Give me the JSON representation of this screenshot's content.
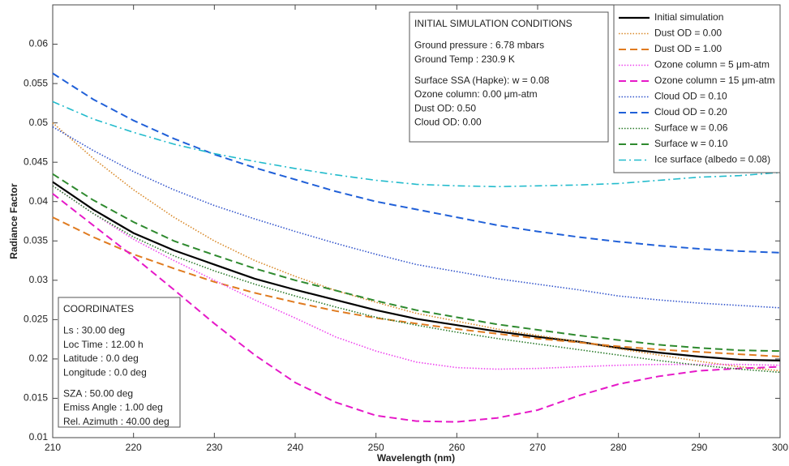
{
  "chart_data": {
    "type": "line",
    "x_label": "Wavelength (nm)",
    "y_label": "Radiance Factor",
    "x": [
      210,
      215,
      220,
      225,
      230,
      235,
      240,
      245,
      250,
      255,
      260,
      265,
      270,
      275,
      280,
      285,
      290,
      295,
      300
    ],
    "xlim": [
      210,
      300
    ],
    "xticks": [
      210,
      220,
      230,
      240,
      250,
      260,
      270,
      280,
      290,
      300
    ],
    "ylim": [
      0.01,
      0.065
    ],
    "yticks": [
      0.01,
      0.015,
      0.02,
      0.025,
      0.03,
      0.035,
      0.04,
      0.045,
      0.05,
      0.055,
      0.06
    ],
    "grid": false,
    "legend": "upper right",
    "series": [
      {
        "name": "Initial simulation",
        "color": "#000000",
        "style": "solid",
        "values": [
          0.0425,
          0.039,
          0.036,
          0.0338,
          0.032,
          0.0302,
          0.0288,
          0.0275,
          0.0262,
          0.0251,
          0.0243,
          0.0235,
          0.0228,
          0.0222,
          0.0214,
          0.0208,
          0.0203,
          0.0199,
          0.0198
        ]
      },
      {
        "name": "Dust OD = 0.00",
        "color": "#d98a2b",
        "style": "dotted",
        "values": [
          0.05,
          0.0455,
          0.0415,
          0.038,
          0.035,
          0.0325,
          0.0305,
          0.0287,
          0.0272,
          0.0258,
          0.0248,
          0.0238,
          0.023,
          0.0222,
          0.0213,
          0.0205,
          0.0197,
          0.019,
          0.0185
        ]
      },
      {
        "name": "Dust OD = 1.00",
        "color": "#e07b20",
        "style": "dashed",
        "values": [
          0.038,
          0.0355,
          0.0333,
          0.0315,
          0.0298,
          0.0284,
          0.0272,
          0.0261,
          0.0252,
          0.0245,
          0.0238,
          0.0232,
          0.0226,
          0.0221,
          0.0216,
          0.0212,
          0.0209,
          0.0206,
          0.0203
        ]
      },
      {
        "name": "Ozone column = 5  μm-atm",
        "color": "#ee44ee",
        "style": "dotted",
        "values": [
          0.042,
          0.0385,
          0.0352,
          0.0325,
          0.03,
          0.0275,
          0.0252,
          0.0228,
          0.021,
          0.0196,
          0.0189,
          0.0187,
          0.0188,
          0.019,
          0.0192,
          0.0193,
          0.0193,
          0.0193,
          0.0192
        ]
      },
      {
        "name": "Ozone column = 15  μm-atm",
        "color": "#e619c8",
        "style": "dashed",
        "values": [
          0.041,
          0.037,
          0.033,
          0.0288,
          0.0245,
          0.0205,
          0.017,
          0.0145,
          0.0128,
          0.0121,
          0.012,
          0.0125,
          0.0135,
          0.0153,
          0.0168,
          0.0178,
          0.0185,
          0.0188,
          0.019
        ]
      },
      {
        "name": "Cloud OD = 0.10",
        "color": "#3355cc",
        "style": "dotted",
        "values": [
          0.0495,
          0.0465,
          0.0438,
          0.0415,
          0.0395,
          0.0378,
          0.0362,
          0.0347,
          0.0333,
          0.032,
          0.0311,
          0.0302,
          0.0295,
          0.0288,
          0.028,
          0.0275,
          0.0271,
          0.0268,
          0.0265
        ]
      },
      {
        "name": "Cloud OD = 0.20",
        "color": "#2060d8",
        "style": "dashed",
        "values": [
          0.0563,
          0.053,
          0.0503,
          0.048,
          0.046,
          0.0443,
          0.0428,
          0.0413,
          0.04,
          0.039,
          0.038,
          0.037,
          0.0362,
          0.0355,
          0.0349,
          0.0344,
          0.034,
          0.0337,
          0.0335
        ]
      },
      {
        "name": "Surface w = 0.06",
        "color": "#2a7a2a",
        "style": "dotted",
        "values": [
          0.042,
          0.0385,
          0.0355,
          0.0331,
          0.0312,
          0.0295,
          0.028,
          0.0266,
          0.0253,
          0.0243,
          0.0234,
          0.0226,
          0.0219,
          0.0212,
          0.0205,
          0.0198,
          0.0192,
          0.0187,
          0.0183
        ]
      },
      {
        "name": "Surface w = 0.10",
        "color": "#2f8a2f",
        "style": "dashed",
        "values": [
          0.0435,
          0.0402,
          0.0374,
          0.035,
          0.0332,
          0.0315,
          0.03,
          0.0287,
          0.0274,
          0.0262,
          0.0253,
          0.0244,
          0.0237,
          0.023,
          0.0224,
          0.0218,
          0.0214,
          0.0211,
          0.021
        ]
      },
      {
        "name": "Ice surface (albedo = 0.08)",
        "color": "#22bbcc",
        "style": "dashdot",
        "values": [
          0.0527,
          0.0505,
          0.0488,
          0.0473,
          0.0461,
          0.0451,
          0.0442,
          0.0434,
          0.0427,
          0.0422,
          0.042,
          0.0419,
          0.042,
          0.0421,
          0.0423,
          0.0427,
          0.0431,
          0.0433,
          0.0437
        ]
      }
    ],
    "annotations": [
      {
        "title": "INITIAL SIMULATION CONDITIONS",
        "groups": [
          [
            "Ground pressure : 6.78 mbars",
            "Ground Temp : 230.9 K"
          ],
          [
            "Surface SSA (Hapke): w = 0.08",
            "Ozone column: 0.00  μm-atm",
            "Dust OD: 0.50",
            "Cloud OD: 0.00"
          ]
        ]
      },
      {
        "title": "COORDINATES",
        "groups": [
          [
            "Ls : 30.00 deg",
            "Loc Time : 12.00 h",
            "Latitude : 0.0 deg",
            "Longitude : 0.0 deg"
          ],
          [
            "SZA : 50.00 deg",
            "Emiss Angle : 1.00 deg",
            "Rel. Azimuth : 40.00 deg"
          ]
        ]
      }
    ]
  }
}
